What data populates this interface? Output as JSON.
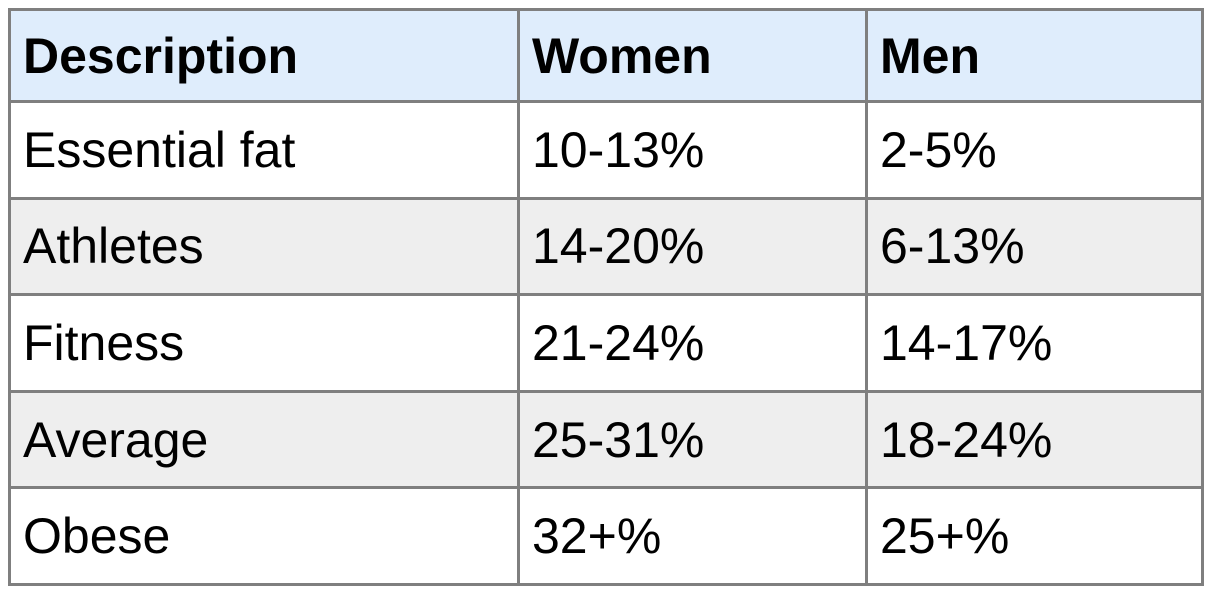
{
  "table": {
    "headers": [
      "Description",
      "Women",
      "Men"
    ],
    "rows": [
      [
        "Essential fat",
        "10-13%",
        "2-5%"
      ],
      [
        "Athletes",
        "14-20%",
        "6-13%"
      ],
      [
        "Fitness",
        "21-24%",
        "14-17%"
      ],
      [
        "Average",
        "25-31%",
        "18-24%"
      ],
      [
        "Obese",
        "32+%",
        "25+%"
      ]
    ]
  },
  "colors": {
    "header_bg": "#dfedfc",
    "row_alt_bg": "#eeeeee",
    "border": "#7f7f7f"
  }
}
